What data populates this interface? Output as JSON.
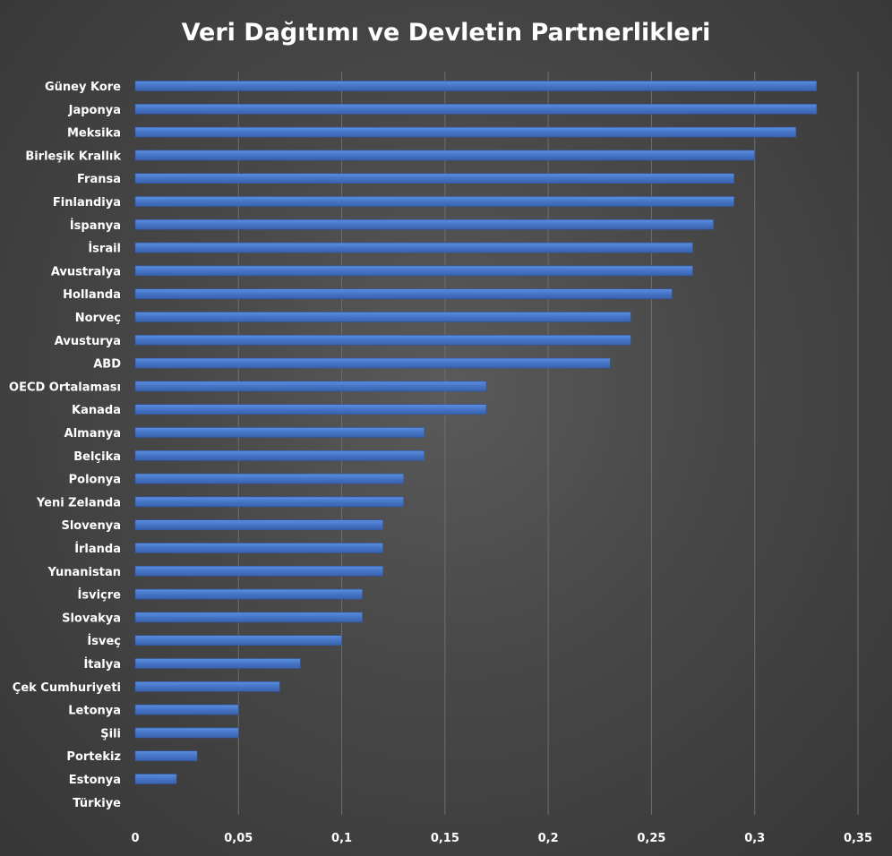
{
  "chart_data": {
    "type": "bar",
    "orientation": "horizontal",
    "title": "Veri Dağıtımı ve Devletin Partnerlikleri",
    "xlabel": "",
    "ylabel": "",
    "categories": [
      "Güney Kore",
      "Japonya",
      "Meksika",
      "Birleşik Krallık",
      "Fransa",
      "Finlandiya",
      "İspanya",
      "İsrail",
      "Avustralya",
      "Hollanda",
      "Norveç",
      "Avusturya",
      "ABD",
      "OECD Ortalaması",
      "Kanada",
      "Almanya",
      "Belçika",
      "Polonya",
      "Yeni Zelanda",
      "Slovenya",
      "İrlanda",
      "Yunanistan",
      "İsviçre",
      "Slovakya",
      "İsveç",
      "İtalya",
      "Çek Cumhuriyeti",
      "Letonya",
      "Şili",
      "Portekiz",
      "Estonya",
      "Türkiye"
    ],
    "values": [
      0.33,
      0.33,
      0.32,
      0.3,
      0.29,
      0.29,
      0.28,
      0.27,
      0.27,
      0.26,
      0.24,
      0.24,
      0.23,
      0.17,
      0.17,
      0.14,
      0.14,
      0.13,
      0.13,
      0.12,
      0.12,
      0.12,
      0.11,
      0.11,
      0.1,
      0.08,
      0.07,
      0.05,
      0.05,
      0.03,
      0.02,
      0.0
    ],
    "xlim": [
      0,
      0.35
    ],
    "xticks": [
      0,
      0.05,
      0.1,
      0.15,
      0.2,
      0.25,
      0.3,
      0.35
    ],
    "xtick_labels": [
      "0",
      "0,05",
      "0,1",
      "0,15",
      "0,2",
      "0,25",
      "0,3",
      "0,35"
    ],
    "grid": true,
    "legend": "none",
    "colors": {
      "bar": "#4472c4",
      "bar_light": "#5b8ee0",
      "bar_dark": "#3a62ad",
      "text": "#ffffff",
      "grid": "#6e6e6e"
    }
  }
}
